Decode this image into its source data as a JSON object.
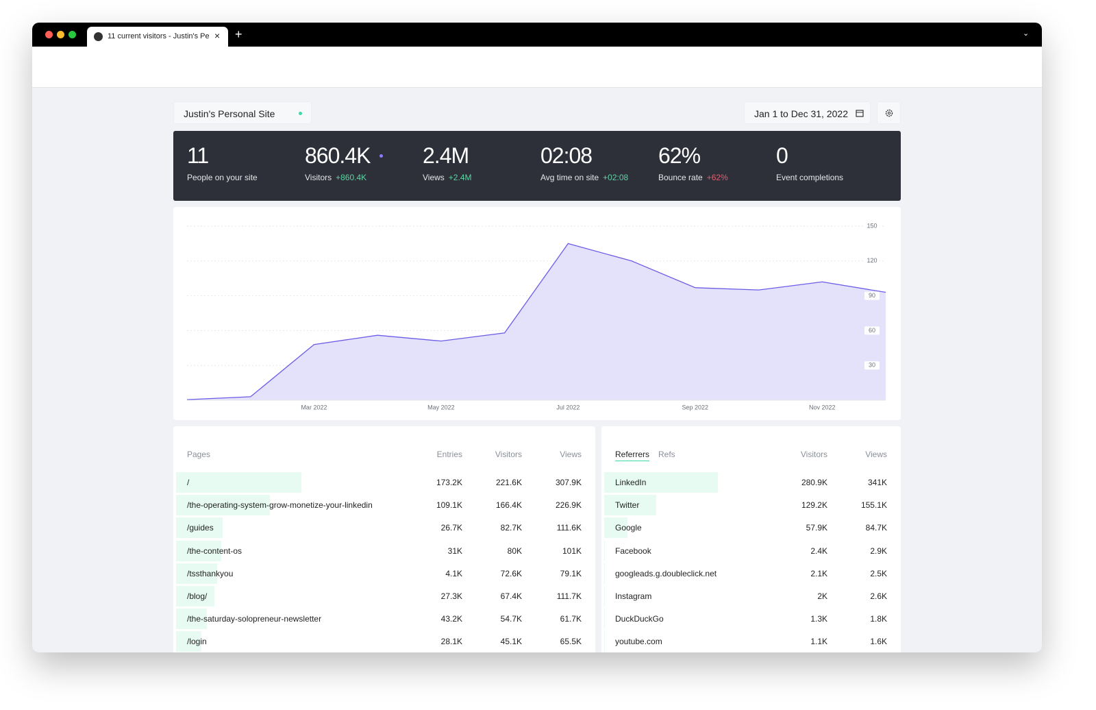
{
  "browser": {
    "tab_title": "11 current visitors - Justin's Pe"
  },
  "site": {
    "name": "Justin's Personal Site",
    "date_range": "Jan 1 to Dec 31, 2022"
  },
  "stats": [
    {
      "value": "11",
      "label": "People on your site"
    },
    {
      "value": "860.4K",
      "label": "Visitors",
      "change": "+860.4K",
      "change_color": "#5fd4a4"
    },
    {
      "value": "2.4M",
      "label": "Views",
      "change": "+2.4M",
      "change_color": "#5fd4a4"
    },
    {
      "value": "02:08",
      "label": "Avg time on site",
      "change": "+02:08",
      "change_color": "#5fd4a4"
    },
    {
      "value": "62%",
      "label": "Bounce rate",
      "change": "+62%",
      "change_color": "#e85a6e"
    },
    {
      "value": "0",
      "label": "Event completions"
    }
  ],
  "chart_data": {
    "type": "area",
    "categories": [
      null,
      null,
      "Mar 2022",
      null,
      "May 2022",
      null,
      "Jul 2022",
      null,
      "Sep 2022",
      null,
      "Nov 2022",
      null
    ],
    "values": [
      0.5,
      3,
      48,
      56,
      51,
      58,
      135,
      120,
      97,
      95,
      102,
      93
    ],
    "color": "#6b5ce7",
    "fill": "#e4e1fb",
    "ylim": [
      0,
      150
    ],
    "yticks": [
      30,
      60,
      90,
      120,
      150
    ],
    "grid": true
  },
  "pages": {
    "columns": [
      "Pages",
      "Entries",
      "Visitors",
      "Views"
    ],
    "rows": [
      [
        "/",
        "173.2K",
        "221.6K",
        "307.9K"
      ],
      [
        "/the-operating-system-grow-monetize-your-linkedin",
        "109.1K",
        "166.4K",
        "226.9K"
      ],
      [
        "/guides",
        "26.7K",
        "82.7K",
        "111.6K"
      ],
      [
        "/the-content-os",
        "31K",
        "80K",
        "101K"
      ],
      [
        "/tssthankyou",
        "4.1K",
        "72.6K",
        "79.1K"
      ],
      [
        "/blog/",
        "27.3K",
        "67.4K",
        "111.7K"
      ],
      [
        "/the-saturday-solopreneur-newsletter",
        "43.2K",
        "54.7K",
        "61.7K"
      ],
      [
        "/login",
        "28.1K",
        "45.1K",
        "65.5K"
      ]
    ]
  },
  "referrers": {
    "tabs": [
      "Referrers",
      "Refs"
    ],
    "columns": [
      "Visitors",
      "Views"
    ],
    "rows": [
      [
        "LinkedIn",
        "280.9K",
        "341K"
      ],
      [
        "Twitter",
        "129.2K",
        "155.1K"
      ],
      [
        "Google",
        "57.9K",
        "84.7K"
      ],
      [
        "Facebook",
        "2.4K",
        "2.9K"
      ],
      [
        "googleads.g.doubleclick.net",
        "2.1K",
        "2.5K"
      ],
      [
        "Instagram",
        "2K",
        "2.6K"
      ],
      [
        "DuckDuckGo",
        "1.3K",
        "1.8K"
      ],
      [
        "youtube.com",
        "1.1K",
        "1.6K"
      ]
    ]
  }
}
